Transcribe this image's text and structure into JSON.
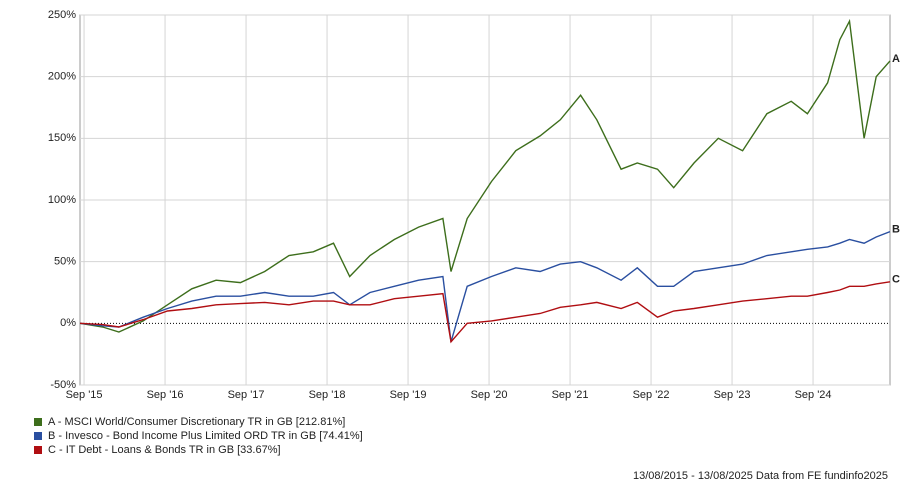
{
  "chart_data": {
    "type": "line",
    "x": [
      2015.62,
      2015.9,
      2016.1,
      2016.4,
      2016.7,
      2017.0,
      2017.3,
      2017.6,
      2017.9,
      2018.2,
      2018.5,
      2018.75,
      2018.95,
      2019.2,
      2019.5,
      2019.8,
      2020.1,
      2020.2,
      2020.4,
      2020.7,
      2021.0,
      2021.3,
      2021.55,
      2021.8,
      2022.0,
      2022.3,
      2022.5,
      2022.75,
      2022.95,
      2023.2,
      2023.5,
      2023.8,
      2024.1,
      2024.4,
      2024.6,
      2024.85,
      2025.0,
      2025.12,
      2025.3,
      2025.45,
      2025.62
    ],
    "series": [
      {
        "name": "A - MSCI World/Consumer Discretionary TR in GB [212.81%]",
        "end_label": "A",
        "color": "#3d6e1c",
        "values": [
          0,
          -3,
          -7,
          2,
          15,
          28,
          35,
          33,
          42,
          55,
          58,
          65,
          38,
          55,
          68,
          78,
          85,
          42,
          85,
          115,
          140,
          152,
          165,
          185,
          165,
          125,
          130,
          125,
          110,
          130,
          150,
          140,
          170,
          180,
          170,
          195,
          230,
          245,
          150,
          200,
          212.81
        ]
      },
      {
        "name": "B - Invesco - Bond Income Plus Limited ORD TR in GB [74.41%]",
        "end_label": "B",
        "color": "#2a4fa0",
        "values": [
          0,
          -2,
          -3,
          5,
          12,
          18,
          22,
          22,
          25,
          22,
          22,
          25,
          15,
          25,
          30,
          35,
          38,
          -15,
          30,
          38,
          45,
          42,
          48,
          50,
          45,
          35,
          45,
          30,
          30,
          42,
          45,
          48,
          55,
          58,
          60,
          62,
          65,
          68,
          65,
          70,
          74.41
        ]
      },
      {
        "name": "C - IT Debt - Loans & Bonds TR in GB [33.67%]",
        "end_label": "C",
        "color": "#b00e12",
        "values": [
          0,
          -1,
          -3,
          3,
          10,
          12,
          15,
          16,
          17,
          15,
          18,
          18,
          15,
          15,
          20,
          22,
          24,
          -15,
          0,
          2,
          5,
          8,
          13,
          15,
          17,
          12,
          17,
          5,
          10,
          12,
          15,
          18,
          20,
          22,
          22,
          25,
          27,
          30,
          30,
          32,
          33.67
        ]
      }
    ],
    "xlim": [
      2015.62,
      2025.62
    ],
    "xticks": [
      {
        "value": 2015.67,
        "label": "Sep '15"
      },
      {
        "value": 2016.67,
        "label": "Sep '16"
      },
      {
        "value": 2017.67,
        "label": "Sep '17"
      },
      {
        "value": 2018.67,
        "label": "Sep '18"
      },
      {
        "value": 2019.67,
        "label": "Sep '19"
      },
      {
        "value": 2020.67,
        "label": "Sep '20"
      },
      {
        "value": 2021.67,
        "label": "Sep '21"
      },
      {
        "value": 2022.67,
        "label": "Sep '22"
      },
      {
        "value": 2023.67,
        "label": "Sep '23"
      },
      {
        "value": 2024.67,
        "label": "Sep '24"
      }
    ],
    "ylim": [
      -50,
      250
    ],
    "yticks": [
      {
        "value": -50,
        "label": "-50%"
      },
      {
        "value": 0,
        "label": "0%"
      },
      {
        "value": 50,
        "label": "50%"
      },
      {
        "value": 100,
        "label": "100%"
      },
      {
        "value": 150,
        "label": "150%"
      },
      {
        "value": 200,
        "label": "200%"
      },
      {
        "value": 250,
        "label": "250%"
      }
    ],
    "grid": true,
    "footer": "13/08/2015 - 13/08/2025 Data from FE fundinfo2025"
  }
}
